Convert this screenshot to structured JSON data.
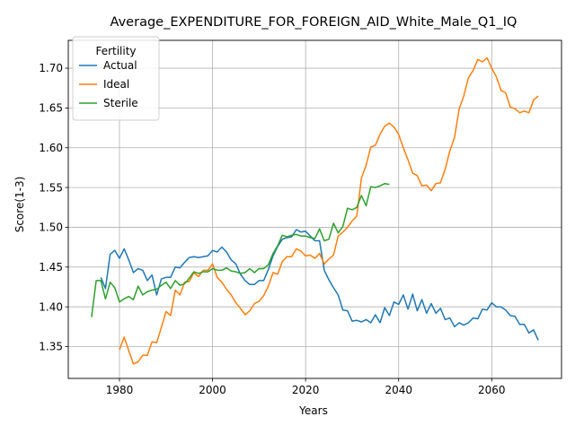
{
  "chart_data": {
    "type": "line",
    "title": "Average_EXPENDITURE_FOR_FOREIGN_AID_White_Male_Q1_IQ",
    "xlabel": "Years",
    "ylabel": "Score(1-3)",
    "xlim": [
      1969,
      2075
    ],
    "ylim": [
      1.31,
      1.735
    ],
    "xticks": [
      1980,
      2000,
      2020,
      2040,
      2060
    ],
    "yticks": [
      1.35,
      1.4,
      1.45,
      1.5,
      1.55,
      1.6,
      1.65,
      1.7
    ],
    "ytick_labels": [
      "1.35",
      "1.40",
      "1.45",
      "1.50",
      "1.55",
      "1.60",
      "1.65",
      "1.70"
    ],
    "grid": true,
    "legend": {
      "title": "Fertility",
      "placement": "top-left"
    },
    "series": [
      {
        "name": "Actual",
        "color": "#1f77b4",
        "x": [
          1976,
          1977,
          1978,
          1979,
          1980,
          1981,
          1982,
          1983,
          1984,
          1985,
          1986,
          1987,
          1988,
          1989,
          1990,
          1991,
          1992,
          1993,
          1994,
          1995,
          1996,
          1997,
          1998,
          1999,
          2000,
          2001,
          2002,
          2003,
          2004,
          2005,
          2006,
          2007,
          2008,
          2009,
          2010,
          2011,
          2012,
          2013,
          2014,
          2015,
          2016,
          2017,
          2018,
          2019,
          2020,
          2021,
          2022,
          2023,
          2024,
          2025,
          2026,
          2027,
          2028,
          2029,
          2030,
          2031,
          2032,
          2033,
          2034,
          2035,
          2036,
          2037,
          2038,
          2039,
          2040,
          2041,
          2042,
          2043,
          2044,
          2045,
          2046,
          2047,
          2048,
          2049,
          2050,
          2051,
          2052,
          2053,
          2054,
          2055,
          2056,
          2057,
          2058,
          2059,
          2060,
          2061,
          2062,
          2063,
          2064,
          2065,
          2066,
          2067,
          2068,
          2069,
          2070
        ],
        "values": [
          1.437,
          1.423,
          1.466,
          1.471,
          1.461,
          1.473,
          1.459,
          1.443,
          1.448,
          1.446,
          1.433,
          1.44,
          1.415,
          1.435,
          1.437,
          1.437,
          1.45,
          1.449,
          1.456,
          1.462,
          1.463,
          1.462,
          1.463,
          1.464,
          1.471,
          1.469,
          1.475,
          1.469,
          1.459,
          1.454,
          1.441,
          1.433,
          1.428,
          1.428,
          1.433,
          1.433,
          1.447,
          1.464,
          1.476,
          1.485,
          1.487,
          1.488,
          1.497,
          1.494,
          1.495,
          1.489,
          1.483,
          1.483,
          1.446,
          1.434,
          1.424,
          1.415,
          1.396,
          1.395,
          1.382,
          1.383,
          1.381,
          1.384,
          1.38,
          1.39,
          1.38,
          1.399,
          1.389,
          1.406,
          1.403,
          1.415,
          1.397,
          1.416,
          1.395,
          1.409,
          1.392,
          1.404,
          1.392,
          1.398,
          1.384,
          1.386,
          1.375,
          1.38,
          1.377,
          1.38,
          1.386,
          1.385,
          1.397,
          1.396,
          1.405,
          1.4,
          1.4,
          1.396,
          1.389,
          1.388,
          1.378,
          1.378,
          1.367,
          1.371,
          1.358
        ]
      },
      {
        "name": "Ideal",
        "color": "#ff7f0e",
        "x": [
          1980,
          1981,
          1982,
          1983,
          1984,
          1985,
          1986,
          1987,
          1988,
          1989,
          1990,
          1991,
          1992,
          1993,
          1994,
          1995,
          1996,
          1997,
          1998,
          1999,
          2000,
          2001,
          2002,
          2003,
          2004,
          2005,
          2006,
          2007,
          2008,
          2009,
          2010,
          2011,
          2012,
          2013,
          2014,
          2015,
          2016,
          2017,
          2018,
          2019,
          2020,
          2021,
          2022,
          2023,
          2024,
          2025,
          2026,
          2027,
          2028,
          2029,
          2030,
          2031,
          2032,
          2033,
          2034,
          2035,
          2036,
          2037,
          2038,
          2039,
          2040,
          2041,
          2042,
          2043,
          2044,
          2045,
          2046,
          2047,
          2048,
          2049,
          2050,
          2051,
          2052,
          2053,
          2054,
          2055,
          2056,
          2057,
          2058,
          2059,
          2060,
          2061,
          2062,
          2063,
          2064,
          2065,
          2066,
          2067,
          2068,
          2069,
          2070
        ],
        "values": [
          1.346,
          1.362,
          1.345,
          1.328,
          1.331,
          1.339,
          1.339,
          1.356,
          1.355,
          1.374,
          1.394,
          1.389,
          1.421,
          1.415,
          1.431,
          1.432,
          1.443,
          1.438,
          1.446,
          1.446,
          1.454,
          1.437,
          1.431,
          1.422,
          1.415,
          1.405,
          1.398,
          1.39,
          1.395,
          1.404,
          1.407,
          1.414,
          1.426,
          1.443,
          1.441,
          1.457,
          1.463,
          1.463,
          1.473,
          1.47,
          1.464,
          1.465,
          1.461,
          1.467,
          1.454,
          1.46,
          1.465,
          1.489,
          1.494,
          1.5,
          1.508,
          1.514,
          1.562,
          1.578,
          1.601,
          1.603,
          1.617,
          1.627,
          1.631,
          1.626,
          1.617,
          1.6,
          1.585,
          1.568,
          1.565,
          1.552,
          1.553,
          1.546,
          1.555,
          1.556,
          1.573,
          1.596,
          1.613,
          1.649,
          1.665,
          1.688,
          1.697,
          1.711,
          1.708,
          1.713,
          1.7,
          1.689,
          1.672,
          1.669,
          1.651,
          1.649,
          1.644,
          1.646,
          1.644,
          1.66,
          1.665
        ]
      },
      {
        "name": "Sterile",
        "color": "#2ca02c",
        "x": [
          1974,
          1975,
          1976,
          1977,
          1978,
          1979,
          1980,
          1981,
          1982,
          1983,
          1984,
          1985,
          1986,
          1987,
          1988,
          1989,
          1990,
          1991,
          1992,
          1993,
          1994,
          1995,
          1996,
          1997,
          1998,
          1999,
          2000,
          2001,
          2002,
          2003,
          2004,
          2005,
          2006,
          2007,
          2008,
          2009,
          2010,
          2011,
          2012,
          2013,
          2014,
          2015,
          2016,
          2017,
          2018,
          2019,
          2020,
          2021,
          2022,
          2023,
          2024,
          2025,
          2026,
          2027,
          2028,
          2029,
          2030,
          2031,
          2032,
          2033,
          2034,
          2035,
          2036,
          2037,
          2038
        ],
        "values": [
          1.387,
          1.433,
          1.433,
          1.41,
          1.431,
          1.424,
          1.406,
          1.41,
          1.413,
          1.409,
          1.426,
          1.415,
          1.419,
          1.421,
          1.422,
          1.427,
          1.431,
          1.423,
          1.433,
          1.427,
          1.429,
          1.436,
          1.444,
          1.442,
          1.444,
          1.444,
          1.448,
          1.446,
          1.446,
          1.449,
          1.445,
          1.444,
          1.442,
          1.443,
          1.448,
          1.443,
          1.448,
          1.448,
          1.453,
          1.467,
          1.477,
          1.49,
          1.488,
          1.49,
          1.491,
          1.489,
          1.489,
          1.487,
          1.486,
          1.498,
          1.483,
          1.485,
          1.505,
          1.493,
          1.501,
          1.524,
          1.522,
          1.525,
          1.54,
          1.527,
          1.551,
          1.55,
          1.552,
          1.555,
          1.554
        ]
      }
    ]
  }
}
